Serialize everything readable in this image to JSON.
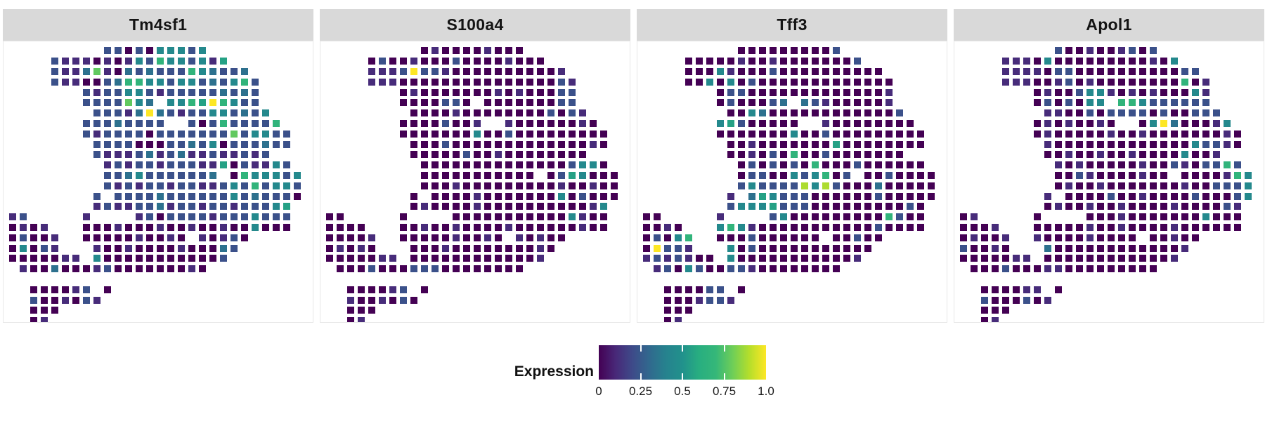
{
  "chart_data": {
    "type": "scatter",
    "subtype": "spatial-feature-plot-faceted",
    "facet_count": 4,
    "expression_range": [
      0,
      1
    ],
    "spot_value_encoding": "rows are strings of 28 cells; '.' = no tissue spot; digit d (0-9) = normalized expression d/9 mapped through viridis colormap",
    "panels": [
      {
        "gene": "Tm4sf1",
        "spots": [
          ".........2202044424.........",
          "....21110101426442415.......",
          "....2113710323222643223.....",
          "....21100236644244232462....",
          ".......21224421222223232....",
          ".......2222743.446596422....",
          "........22213932122442324...",
          ".......22232222..202622226..",
          ".......21222202222222724422.",
          "........2222000223240222322.",
          "........21112312311211212...",
          ".........121221222115021142.",
          ".........22342222223.0644424",
          ".........2121221221124262442",
          "........2.222232222224232220",
          "........1211223122122122245.",
          "12.....1....120222212224222.",
          "0101...00010001001001004000.",
          "02001..0000010010.10120.....",
          "04021...10010000100032......",
          "0000011.4000000000002.......",
          ".100300012000000010.........",
          "............................",
          "..000012.0..................",
          "..2001021...................",
          "..000.......................",
          "..01........................"
        ]
      },
      {
        "gene": "S100a4",
        "spots": [
          ".........0100001000.........",
          "....02001000200001000.......",
          "....1112922100000000001.....",
          "....11100000000000000021....",
          ".......01000000010100022....",
          ".......0000220.000000022....",
          "........00001000000002021...",
          ".......00002001..100000010..",
          ".......00000004002000000000.",
          "........0002000000000000010.",
          "........00000200100000000...",
          ".........000000000000002440.",
          ".........00000000000.0254000",
          ".........0001000000000100100",
          "........0.000010000000402000",
          "........0100001000000000014.",
          "00.....0....000000000004100.",
          "0000...00100100001000000100.",
          "00001..0000010010.10100.....",
          "01010...00010000000010......",
          "0000011.0000000000001.......",
          ".000200022200000000.........",
          "............................",
          "..000012.0..................",
          "..1001020...................",
          "..000.......................",
          "..01........................"
        ]
      },
      {
        "gene": "Tff3",
        "spots": [
          ".........0000000002.........",
          "....00000100100000002.......",
          "....0004100020000000000.....",
          "....00404020000000000000....",
          ".......02200000000000001....",
          ".......0200023.321000001....",
          "........00430000000000002...",
          ".......45200000..100000000..",
          ".......00000004002000000000.",
          "........0010000000500000000.",
          "........00102060020000000...",
          ".........020202060002000000.",
          ".........02200424602.0020000",
          ".........2422228482000300000",
          "........1.354222000000200000",
          "........2444522200000000020.",
          "00.....1....240000000006200.",
          "0010...46410000000000020000.",
          "02046..0002000000.00200.....",
          "09221...40200000000000......",
          "1212100.4000000000001.......",
          ".120420022100000000.........",
          "............................",
          "..000022.0..................",
          "..0001221...................",
          "..000.......................",
          "..01........................"
        ]
      },
      {
        "gene": "Apol1",
        "spots": [
          ".........2001001202.........",
          "....11104000000000104.......",
          "....1111022000000000022.....",
          "....11100120100000000601....",
          ".......01002441010100041....",
          ".......0202044.664222222....",
          "........11002022220200222...",
          ".......01010010..049300014..",
          ".......01000001001000000010.",
          "........1000000000000042210.",
          "........00100100100004001...",
          ".........101000001002102262.",
          ".........00210000100.0000164",
          ".........0100100000001002224",
          "........1.000020010000200024",
          "........0100100100001000021.",
          "01.....0....000100000004000.",
          "0001...00000100100001000000.",
          "01001..1000010000.00100.....",
          "20010...30000000000001......",
          "0000011.0000000000001.......",
          ".000200011000000000.........",
          "............................",
          "..000011.0..................",
          "..2000201...................",
          "..000.......................",
          "..01........................"
        ]
      }
    ],
    "legend": {
      "title": "Expression",
      "tick_labels": [
        "0",
        "0.25",
        "0.5",
        "0.75",
        "1.0"
      ],
      "tick_values": [
        0,
        0.25,
        0.5,
        0.75,
        1.0
      ],
      "colormap": "viridis",
      "position": "bottom-center"
    },
    "colors": {
      "viridis_stops": [
        [
          0.0,
          "#440154"
        ],
        [
          0.1,
          "#482878"
        ],
        [
          0.2,
          "#3e4a89"
        ],
        [
          0.3,
          "#31688e"
        ],
        [
          0.4,
          "#26828e"
        ],
        [
          0.5,
          "#21918c"
        ],
        [
          0.6,
          "#28ae80"
        ],
        [
          0.7,
          "#35b779"
        ],
        [
          0.8,
          "#6ece58"
        ],
        [
          0.9,
          "#b5de2b"
        ],
        [
          1.0,
          "#fde725"
        ]
      ],
      "strip_background": "#d9d9d9",
      "strip_text": "#141414",
      "panel_border": "#e7e7e7",
      "background": "#ffffff"
    }
  }
}
